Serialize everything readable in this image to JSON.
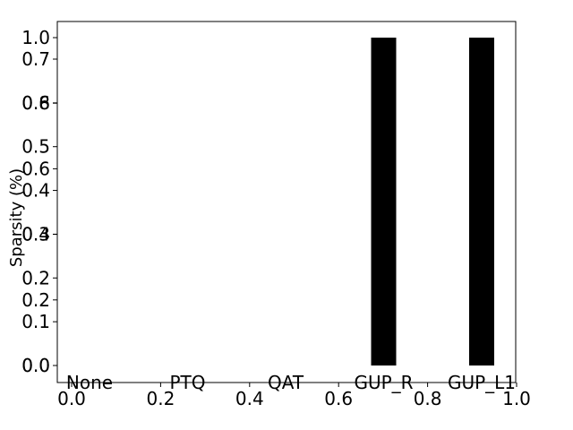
{
  "chart_data": [
    {
      "type": "bar",
      "categories": [
        "None",
        "PTQ",
        "QAT",
        "GUP_R",
        "GUP_L1"
      ],
      "values": [
        0,
        0,
        0,
        1.0,
        1.0
      ],
      "xlabel": "",
      "ylabel": "Sparsity (%)",
      "ylim": [
        0,
        1.05
      ],
      "yticks": [
        "0.0",
        "0.2",
        "0.4",
        "0.6",
        "0.8",
        "1.0"
      ],
      "bar_color": "#000000",
      "grid": false
    },
    {
      "type": "empty-axes",
      "xlim": [
        0,
        1
      ],
      "ylim": [
        0,
        0.75
      ],
      "xticks": [
        "0.0",
        "0.2",
        "0.4",
        "0.6",
        "0.8",
        "1.0"
      ],
      "yticks": [
        "0.0",
        "0.1",
        "0.2",
        "0.3",
        "0.4",
        "0.5",
        "0.6",
        "0.7"
      ],
      "grid": false
    }
  ]
}
